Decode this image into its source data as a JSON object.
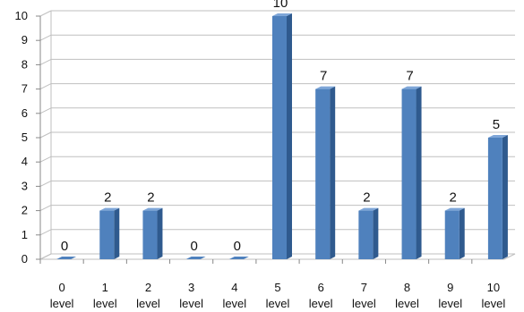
{
  "chart_data": {
    "type": "bar",
    "categories": [
      [
        "0",
        "level"
      ],
      [
        "1",
        "level"
      ],
      [
        "2",
        "level"
      ],
      [
        "3",
        "level"
      ],
      [
        "4",
        "level"
      ],
      [
        "5",
        "level"
      ],
      [
        "6",
        "level"
      ],
      [
        "7",
        "level"
      ],
      [
        "8",
        "level"
      ],
      [
        "9",
        "level"
      ],
      [
        "10",
        "level"
      ]
    ],
    "values": [
      0,
      2,
      2,
      0,
      0,
      10,
      7,
      2,
      7,
      2,
      5
    ],
    "data_labels": [
      "0",
      "2",
      "2",
      "0",
      "0",
      "10",
      "7",
      "2",
      "7",
      "2",
      "5"
    ],
    "title": "",
    "xlabel": "",
    "ylabel": "",
    "ylim": [
      0,
      10
    ],
    "yticks": [
      "0",
      "1",
      "2",
      "3",
      "4",
      "5",
      "6",
      "7",
      "8",
      "9",
      "10"
    ],
    "grid": true,
    "legend": "none",
    "style": "3d-column",
    "colors": {
      "bar_front": "#4f81bd",
      "bar_side": "#2f5a8e",
      "bar_top": "#7ea6d8",
      "grid": "#bfbfbf",
      "axis": "#888888"
    }
  }
}
